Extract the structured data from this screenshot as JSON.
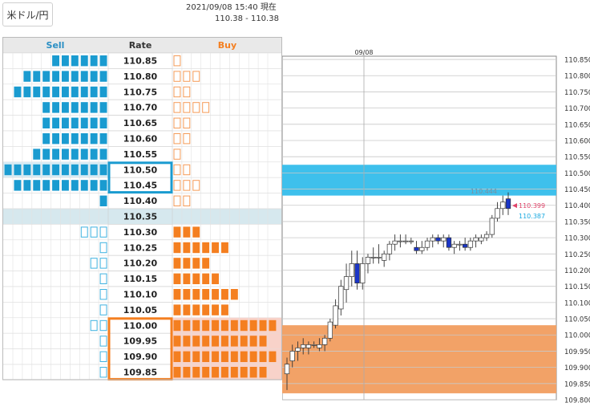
{
  "app": {
    "pair_button": "米ドル/円",
    "timestamp": "2021/09/08 15:40 現在",
    "bid_ask": "110.38 - 110.38"
  },
  "table": {
    "headers": {
      "sell": "Sell",
      "rate": "Rate",
      "buy": "Buy"
    },
    "highlight_sell_rates": [
      "110.50",
      "110.45"
    ],
    "highlight_buy_rates": [
      "110.00",
      "109.95",
      "109.90",
      "109.85"
    ],
    "current_rate_row": "110.35",
    "rows": [
      {
        "rate": "110.85",
        "sell": 6,
        "sell_filled": true,
        "buy": 1,
        "buy_filled": false
      },
      {
        "rate": "110.80",
        "sell": 9,
        "sell_filled": true,
        "buy": 3,
        "buy_filled": false
      },
      {
        "rate": "110.75",
        "sell": 10,
        "sell_filled": true,
        "buy": 2,
        "buy_filled": false
      },
      {
        "rate": "110.70",
        "sell": 7,
        "sell_filled": true,
        "buy": 4,
        "buy_filled": false
      },
      {
        "rate": "110.65",
        "sell": 7,
        "sell_filled": true,
        "buy": 2,
        "buy_filled": false
      },
      {
        "rate": "110.60",
        "sell": 7,
        "sell_filled": true,
        "buy": 2,
        "buy_filled": false
      },
      {
        "rate": "110.55",
        "sell": 8,
        "sell_filled": true,
        "buy": 1,
        "buy_filled": false
      },
      {
        "rate": "110.50",
        "sell": 11,
        "sell_filled": true,
        "buy": 2,
        "buy_filled": false
      },
      {
        "rate": "110.45",
        "sell": 10,
        "sell_filled": true,
        "buy": 3,
        "buy_filled": false
      },
      {
        "rate": "110.40",
        "sell": 1,
        "sell_filled": true,
        "buy": 2,
        "buy_filled": false
      },
      {
        "rate": "110.35",
        "sell": 0,
        "sell_filled": true,
        "buy": 0,
        "buy_filled": false
      },
      {
        "rate": "110.30",
        "sell": 3,
        "sell_filled": false,
        "buy": 3,
        "buy_filled": true
      },
      {
        "rate": "110.25",
        "sell": 1,
        "sell_filled": false,
        "buy": 6,
        "buy_filled": true
      },
      {
        "rate": "110.20",
        "sell": 2,
        "sell_filled": false,
        "buy": 4,
        "buy_filled": true
      },
      {
        "rate": "110.15",
        "sell": 1,
        "sell_filled": false,
        "buy": 5,
        "buy_filled": true
      },
      {
        "rate": "110.10",
        "sell": 1,
        "sell_filled": false,
        "buy": 7,
        "buy_filled": true
      },
      {
        "rate": "110.05",
        "sell": 1,
        "sell_filled": false,
        "buy": 6,
        "buy_filled": true
      },
      {
        "rate": "110.00",
        "sell": 2,
        "sell_filled": false,
        "buy": 11,
        "buy_filled": true
      },
      {
        "rate": "109.95",
        "sell": 1,
        "sell_filled": false,
        "buy": 10,
        "buy_filled": true
      },
      {
        "rate": "109.90",
        "sell": 1,
        "sell_filled": false,
        "buy": 11,
        "buy_filled": true
      },
      {
        "rate": "109.85",
        "sell": 1,
        "sell_filled": false,
        "buy": 10,
        "buy_filled": true
      }
    ],
    "colors": {
      "sell": "#1a9bd0",
      "buy": "#f47f20",
      "sell_outline": "#3fb2e0",
      "buy_outline": "#f59b58",
      "current_row": "#d6e8ee",
      "sell_row_shade": "#d8ecf5",
      "buy_row_shade": "#f8d2c9",
      "header_bg": "#e9e9e9"
    }
  },
  "chart": {
    "date_label": "09/08",
    "high_label": "110.444",
    "price_ask": "110.399",
    "price_bid": "110.387",
    "y_ticks": [
      "110.850",
      "110.800",
      "110.750",
      "110.700",
      "110.650",
      "110.600",
      "110.550",
      "110.500",
      "110.450",
      "110.400",
      "110.350",
      "110.300",
      "110.250",
      "110.200",
      "110.150",
      "110.100",
      "110.050",
      "110.000",
      "109.950",
      "109.900",
      "109.850",
      "109.800"
    ],
    "sell_zone": [
      110.43,
      110.525
    ],
    "buy_zone": [
      109.82,
      110.03
    ],
    "colors": {
      "sell_zone": "#3ec0ec",
      "buy_zone": "#f2a267",
      "ask_color": "#e0456a",
      "bid_color": "#1aa9e0",
      "up_candle": "#ffffff",
      "down_candle": "#1a35c8"
    }
  },
  "chart_data": {
    "type": "candlestick",
    "title": "",
    "ylim": [
      109.8,
      110.86
    ],
    "candles": [
      {
        "o": 109.88,
        "h": 109.93,
        "l": 109.83,
        "c": 109.91
      },
      {
        "o": 109.92,
        "h": 109.97,
        "l": 109.9,
        "c": 109.95
      },
      {
        "o": 109.95,
        "h": 109.98,
        "l": 109.92,
        "c": 109.96
      },
      {
        "o": 109.96,
        "h": 109.99,
        "l": 109.94,
        "c": 109.97
      },
      {
        "o": 109.96,
        "h": 109.98,
        "l": 109.94,
        "c": 109.97
      },
      {
        "o": 109.97,
        "h": 109.98,
        "l": 109.96,
        "c": 109.97
      },
      {
        "o": 109.96,
        "h": 109.99,
        "l": 109.95,
        "c": 109.97
      },
      {
        "o": 109.97,
        "h": 110.0,
        "l": 109.95,
        "c": 109.99
      },
      {
        "o": 109.99,
        "h": 110.05,
        "l": 109.98,
        "c": 110.04
      },
      {
        "o": 110.03,
        "h": 110.11,
        "l": 110.02,
        "c": 110.09
      },
      {
        "o": 110.08,
        "h": 110.17,
        "l": 110.06,
        "c": 110.15
      },
      {
        "o": 110.14,
        "h": 110.22,
        "l": 110.1,
        "c": 110.18
      },
      {
        "o": 110.18,
        "h": 110.26,
        "l": 110.15,
        "c": 110.22
      },
      {
        "o": 110.22,
        "h": 110.26,
        "l": 110.14,
        "c": 110.16
      },
      {
        "o": 110.16,
        "h": 110.24,
        "l": 110.14,
        "c": 110.22
      },
      {
        "o": 110.22,
        "h": 110.25,
        "l": 110.19,
        "c": 110.24
      },
      {
        "o": 110.24,
        "h": 110.27,
        "l": 110.22,
        "c": 110.24
      },
      {
        "o": 110.24,
        "h": 110.28,
        "l": 110.22,
        "c": 110.24
      },
      {
        "o": 110.23,
        "h": 110.26,
        "l": 110.21,
        "c": 110.25
      },
      {
        "o": 110.25,
        "h": 110.29,
        "l": 110.23,
        "c": 110.28
      },
      {
        "o": 110.28,
        "h": 110.31,
        "l": 110.26,
        "c": 110.29
      },
      {
        "o": 110.29,
        "h": 110.31,
        "l": 110.27,
        "c": 110.29
      },
      {
        "o": 110.29,
        "h": 110.31,
        "l": 110.28,
        "c": 110.29
      },
      {
        "o": 110.29,
        "h": 110.3,
        "l": 110.28,
        "c": 110.29
      },
      {
        "o": 110.27,
        "h": 110.29,
        "l": 110.25,
        "c": 110.26
      },
      {
        "o": 110.26,
        "h": 110.29,
        "l": 110.25,
        "c": 110.27
      },
      {
        "o": 110.27,
        "h": 110.3,
        "l": 110.26,
        "c": 110.29
      },
      {
        "o": 110.29,
        "h": 110.31,
        "l": 110.27,
        "c": 110.3
      },
      {
        "o": 110.3,
        "h": 110.31,
        "l": 110.28,
        "c": 110.29
      },
      {
        "o": 110.29,
        "h": 110.31,
        "l": 110.27,
        "c": 110.3
      },
      {
        "o": 110.3,
        "h": 110.31,
        "l": 110.26,
        "c": 110.27
      },
      {
        "o": 110.27,
        "h": 110.29,
        "l": 110.25,
        "c": 110.28
      },
      {
        "o": 110.28,
        "h": 110.29,
        "l": 110.26,
        "c": 110.28
      },
      {
        "o": 110.28,
        "h": 110.3,
        "l": 110.26,
        "c": 110.27
      },
      {
        "o": 110.27,
        "h": 110.3,
        "l": 110.26,
        "c": 110.29
      },
      {
        "o": 110.29,
        "h": 110.31,
        "l": 110.27,
        "c": 110.3
      },
      {
        "o": 110.29,
        "h": 110.31,
        "l": 110.28,
        "c": 110.3
      },
      {
        "o": 110.3,
        "h": 110.32,
        "l": 110.29,
        "c": 110.31
      },
      {
        "o": 110.31,
        "h": 110.37,
        "l": 110.3,
        "c": 110.36
      },
      {
        "o": 110.36,
        "h": 110.41,
        "l": 110.35,
        "c": 110.39
      },
      {
        "o": 110.39,
        "h": 110.43,
        "l": 110.37,
        "c": 110.41
      },
      {
        "o": 110.42,
        "h": 110.44,
        "l": 110.37,
        "c": 110.39
      }
    ]
  }
}
